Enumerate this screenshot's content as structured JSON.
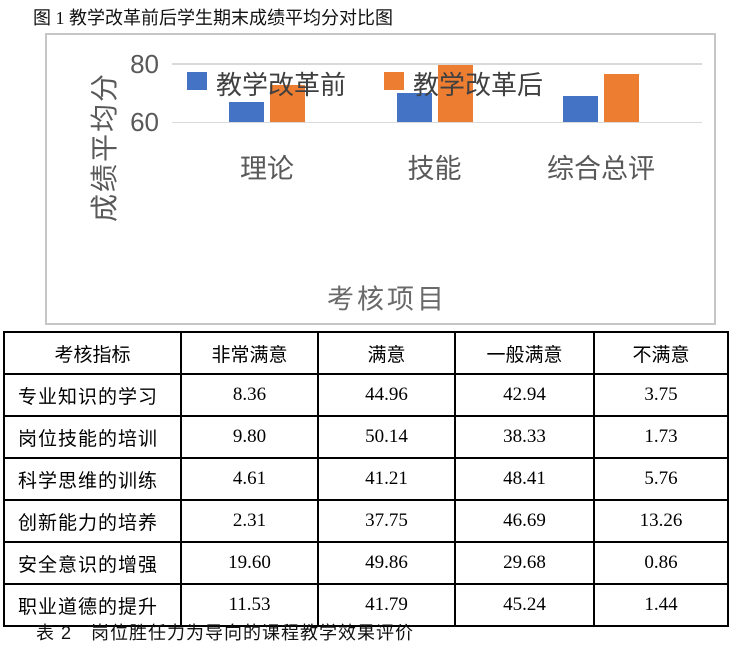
{
  "page": {
    "figure_caption": "图 1 教学改革前后学生期末成绩平均分对比图",
    "table_caption": "表 2　岗位胜任力为导向的课程教学效果评价"
  },
  "chart_data": {
    "type": "bar",
    "categories": [
      "理论",
      "技能",
      "综合总评"
    ],
    "series": [
      {
        "name": "教学改革前",
        "color": "#4472C4",
        "values": [
          67,
          70,
          69
        ]
      },
      {
        "name": "教学改革后",
        "color": "#ED7D31",
        "values": [
          72.5,
          79.5,
          76.5
        ]
      }
    ],
    "title": "",
    "xlabel": "考核项目",
    "ylabel": "成绩平均分",
    "ylim": [
      60,
      85
    ],
    "yticks": [
      80,
      60
    ],
    "grid": true,
    "legend_position": "top-inside",
    "colors": {
      "before": "#4472C4",
      "after": "#ED7D31",
      "axis_text": "#595959",
      "gridline": "#D9D9D9",
      "chart_border": "#C6C6C6"
    }
  },
  "table": {
    "headers": [
      "考核指标",
      "非常满意",
      "满意",
      "一般满意",
      "不满意"
    ],
    "rows": [
      {
        "label": "专业知识的学习",
        "values": [
          "8.36",
          "44.96",
          "42.94",
          "3.75"
        ]
      },
      {
        "label": "岗位技能的培训",
        "values": [
          "9.80",
          "50.14",
          "38.33",
          "1.73"
        ]
      },
      {
        "label": "科学思维的训练",
        "values": [
          "4.61",
          "41.21",
          "48.41",
          "5.76"
        ]
      },
      {
        "label": "创新能力的培养",
        "values": [
          "2.31",
          "37.75",
          "46.69",
          "13.26"
        ]
      },
      {
        "label": "安全意识的增强",
        "values": [
          "19.60",
          "49.86",
          "29.68",
          "0.86"
        ]
      },
      {
        "label": "职业道德的提升",
        "values": [
          "11.53",
          "41.79",
          "45.24",
          "1.44"
        ]
      }
    ]
  }
}
